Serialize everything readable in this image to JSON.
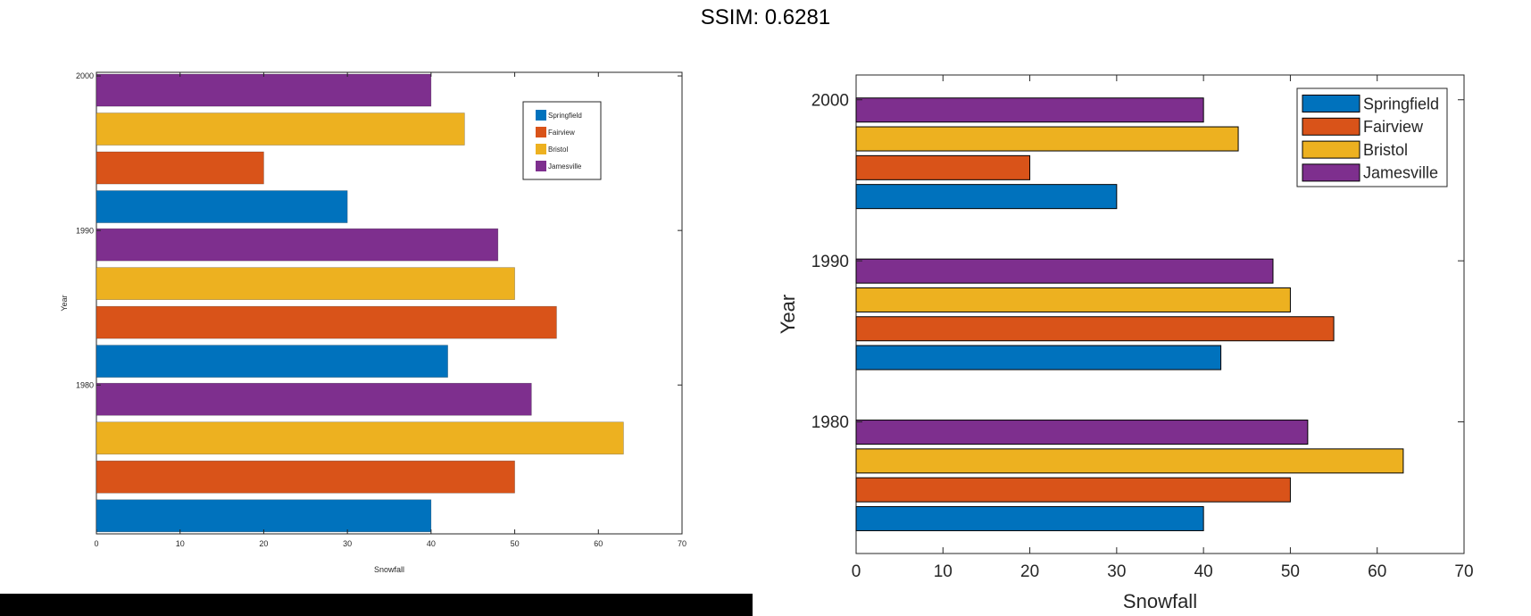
{
  "header": {
    "ssim_label": "SSIM: 0.6281"
  },
  "colors": {
    "springfield": "#0072BD",
    "fairview": "#D95319",
    "bristol": "#EDB120",
    "jamesville": "#7E2F8E",
    "axis": "#262626",
    "background": "#ffffff",
    "footer_bar": "#000000"
  },
  "chart_data": [
    {
      "panel": "left",
      "type": "bar",
      "orientation": "horizontal",
      "title": "",
      "xlabel": "Snowfall",
      "ylabel": "Year",
      "xlim": [
        0,
        70
      ],
      "xticks": [
        0,
        10,
        20,
        30,
        40,
        50,
        60,
        70
      ],
      "ytick_labels": [
        "1980",
        "1990",
        "2000"
      ],
      "categories": [
        1980,
        1990,
        2000
      ],
      "series": [
        {
          "name": "Springfield",
          "color": "#0072BD",
          "values": [
            40,
            42,
            30
          ]
        },
        {
          "name": "Fairview",
          "color": "#D95319",
          "values": [
            50,
            55,
            20
          ]
        },
        {
          "name": "Bristol",
          "color": "#EDB120",
          "values": [
            63,
            50,
            44
          ]
        },
        {
          "name": "Jamesville",
          "color": "#7E2F8E",
          "values": [
            52,
            48,
            40
          ]
        }
      ],
      "legend": {
        "position": "top-right",
        "entries": [
          "Springfield",
          "Fairview",
          "Bristol",
          "Jamesville"
        ]
      },
      "bar_edges": false
    },
    {
      "panel": "right",
      "type": "bar",
      "orientation": "horizontal",
      "title": "",
      "xlabel": "Snowfall",
      "ylabel": "Year",
      "xlim": [
        0,
        70
      ],
      "xticks": [
        0,
        10,
        20,
        30,
        40,
        50,
        60,
        70
      ],
      "ytick_labels": [
        "1980",
        "1990",
        "2000"
      ],
      "categories": [
        1980,
        1990,
        2000
      ],
      "series": [
        {
          "name": "Springfield",
          "color": "#0072BD",
          "values": [
            40,
            42,
            30
          ]
        },
        {
          "name": "Fairview",
          "color": "#D95319",
          "values": [
            50,
            55,
            20
          ]
        },
        {
          "name": "Bristol",
          "color": "#EDB120",
          "values": [
            63,
            50,
            44
          ]
        },
        {
          "name": "Jamesville",
          "color": "#7E2F8E",
          "values": [
            52,
            48,
            40
          ]
        }
      ],
      "legend": {
        "position": "top-right",
        "entries": [
          "Springfield",
          "Fairview",
          "Bristol",
          "Jamesville"
        ]
      },
      "bar_edges": true
    }
  ]
}
